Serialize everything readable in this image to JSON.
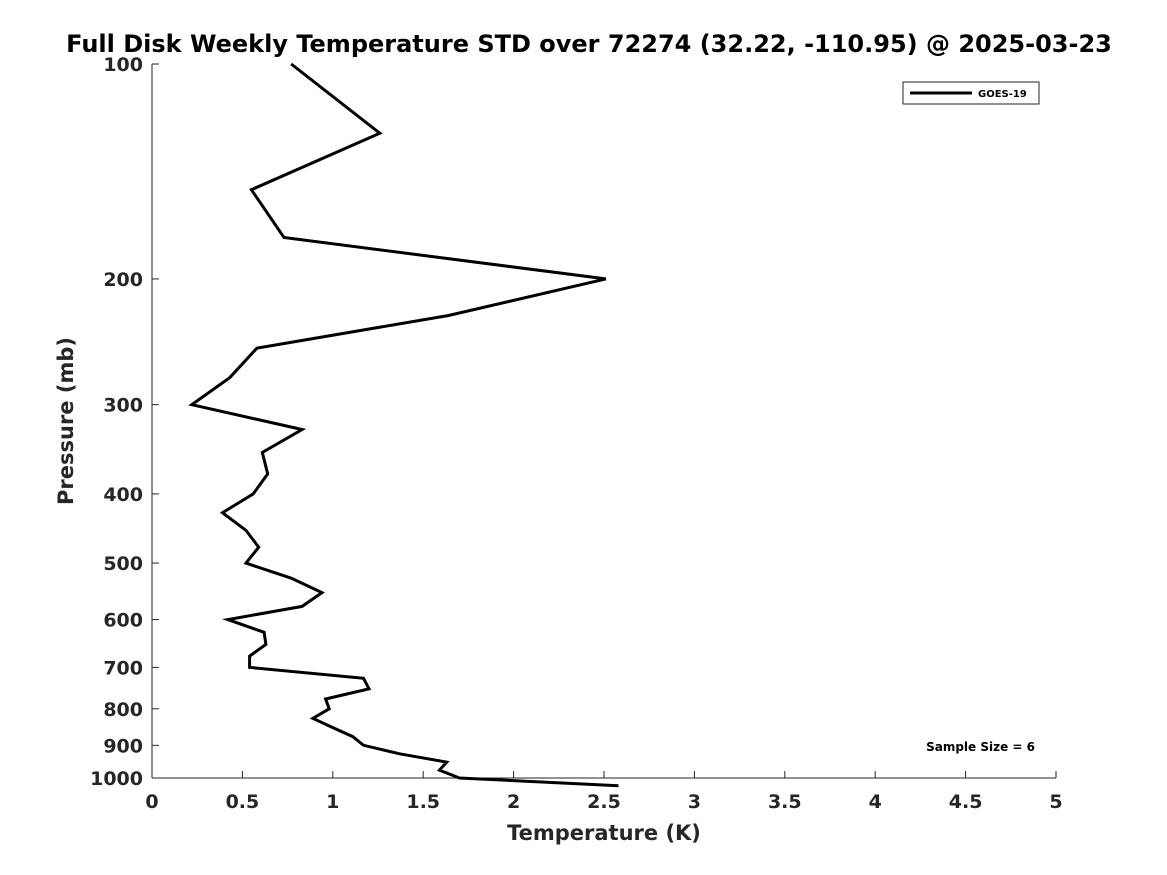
{
  "chart_data": {
    "type": "line",
    "title": "Full Disk Weekly Temperature STD over 72274 (32.22, -110.95) @ 2025-03-23",
    "xlabel": "Temperature (K)",
    "ylabel": "Pressure (mb)",
    "xlim": [
      0,
      5
    ],
    "ylim": [
      100,
      1000
    ],
    "y_scale": "log",
    "y_reversed": true,
    "grid": false,
    "legend_position": "top-right",
    "x_ticks": [
      0,
      0.5,
      1,
      1.5,
      2,
      2.5,
      3,
      3.5,
      4,
      4.5,
      5
    ],
    "x_tick_labels": [
      "0",
      "0.5",
      "1",
      "1.5",
      "2",
      "2.5",
      "3",
      "3.5",
      "4",
      "4.5",
      "5"
    ],
    "y_ticks": [
      100,
      200,
      300,
      400,
      500,
      600,
      700,
      800,
      900,
      1000
    ],
    "y_tick_labels": [
      "100",
      "200",
      "300",
      "400",
      "500",
      "600",
      "700",
      "800",
      "900",
      "1000"
    ],
    "annotation": "Sample Size = 6",
    "series": [
      {
        "name": "GOES-19",
        "color": "#000000",
        "points": [
          [
            0.77,
            100
          ],
          [
            1.26,
            125
          ],
          [
            0.55,
            150
          ],
          [
            0.73,
            175
          ],
          [
            2.51,
            200
          ],
          [
            1.64,
            225
          ],
          [
            0.58,
            250
          ],
          [
            0.43,
            275
          ],
          [
            0.22,
            300
          ],
          [
            0.83,
            325
          ],
          [
            0.61,
            350
          ],
          [
            0.64,
            375
          ],
          [
            0.56,
            400
          ],
          [
            0.39,
            425
          ],
          [
            0.52,
            450
          ],
          [
            0.59,
            475
          ],
          [
            0.52,
            500
          ],
          [
            0.77,
            525
          ],
          [
            0.94,
            550
          ],
          [
            0.83,
            575
          ],
          [
            0.42,
            600
          ],
          [
            0.62,
            625
          ],
          [
            0.63,
            650
          ],
          [
            0.54,
            675
          ],
          [
            0.54,
            700
          ],
          [
            1.17,
            725
          ],
          [
            1.2,
            750
          ],
          [
            0.96,
            775
          ],
          [
            0.98,
            800
          ],
          [
            0.89,
            825
          ],
          [
            1.0,
            850
          ],
          [
            1.11,
            875
          ],
          [
            1.17,
            900
          ],
          [
            1.37,
            925
          ],
          [
            1.63,
            950
          ],
          [
            1.59,
            975
          ],
          [
            1.7,
            1000
          ],
          [
            2.58,
            1025
          ]
        ]
      }
    ]
  }
}
